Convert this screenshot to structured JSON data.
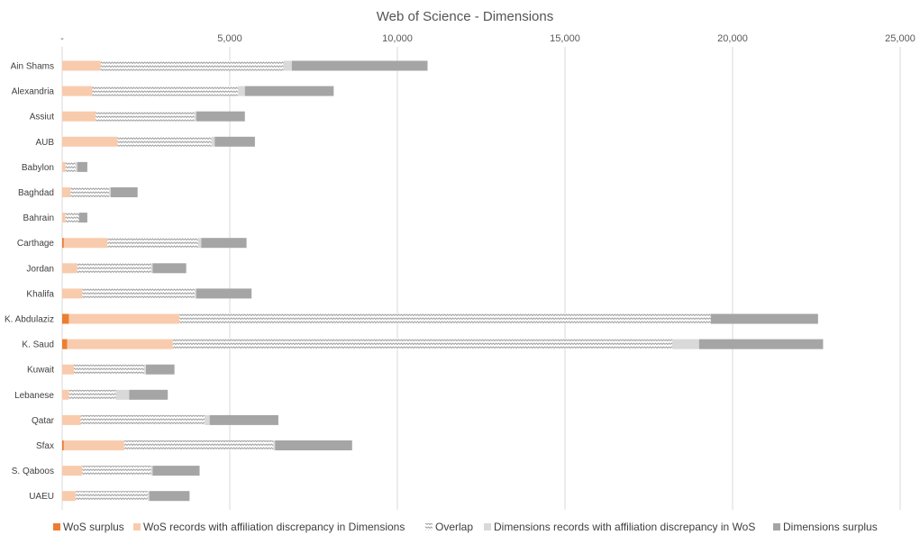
{
  "chart_data": {
    "type": "bar",
    "orientation": "horizontal",
    "stacked": true,
    "title": "Web of Science - Dimensions",
    "xlim": [
      0,
      25000
    ],
    "x_ticks": [
      0,
      5000,
      10000,
      15000,
      20000,
      25000
    ],
    "x_tick_labels": [
      "-",
      "5,000",
      "10,000",
      "15,000",
      "20,000",
      "25,000"
    ],
    "x_axis_position": "top",
    "grid": "vertical",
    "legend": "bottom",
    "categories": [
      "Ain Shams",
      "Alexandria",
      "Assiut",
      "AUB",
      "Babylon",
      "Baghdad",
      "Bahrain",
      "Carthage",
      "Jordan",
      "Khalifa",
      "K. Abdulaziz",
      "K. Saud",
      "Kuwait",
      "Lebanese",
      "Qatar",
      "Sfax",
      "S. Qaboos",
      "UAEU"
    ],
    "series": [
      {
        "name": "WoS surplus",
        "color": "#ED7D31",
        "pattern": "solid",
        "values": [
          0,
          0,
          0,
          0,
          0,
          0,
          0,
          50,
          0,
          0,
          200,
          150,
          0,
          0,
          0,
          50,
          0,
          0
        ]
      },
      {
        "name": "WoS records with affiliation discrepancy in Dimensions",
        "color": "#F8CBAD",
        "pattern": "solid",
        "values": [
          1150,
          900,
          1000,
          1650,
          100,
          250,
          100,
          1300,
          450,
          600,
          3300,
          3150,
          350,
          200,
          550,
          1800,
          600,
          400
        ]
      },
      {
        "name": "Overlap",
        "color": "#A6A6A6",
        "pattern": "zigzag",
        "values": [
          5450,
          4350,
          2950,
          2800,
          300,
          1150,
          400,
          2700,
          2200,
          3350,
          15850,
          14900,
          2100,
          1400,
          3700,
          4450,
          2050,
          2150
        ]
      },
      {
        "name": "Dimensions records with affiliation discrepancy in WoS",
        "color": "#D9D9D9",
        "pattern": "solid",
        "values": [
          250,
          200,
          50,
          100,
          50,
          50,
          0,
          100,
          50,
          50,
          0,
          800,
          50,
          400,
          150,
          50,
          50,
          50
        ]
      },
      {
        "name": "Dimensions surplus",
        "color": "#A5A5A5",
        "pattern": "solid",
        "values": [
          4050,
          2650,
          1450,
          1200,
          300,
          800,
          250,
          1350,
          1000,
          1650,
          3200,
          3700,
          850,
          1150,
          2050,
          2300,
          1400,
          1200
        ]
      }
    ]
  }
}
